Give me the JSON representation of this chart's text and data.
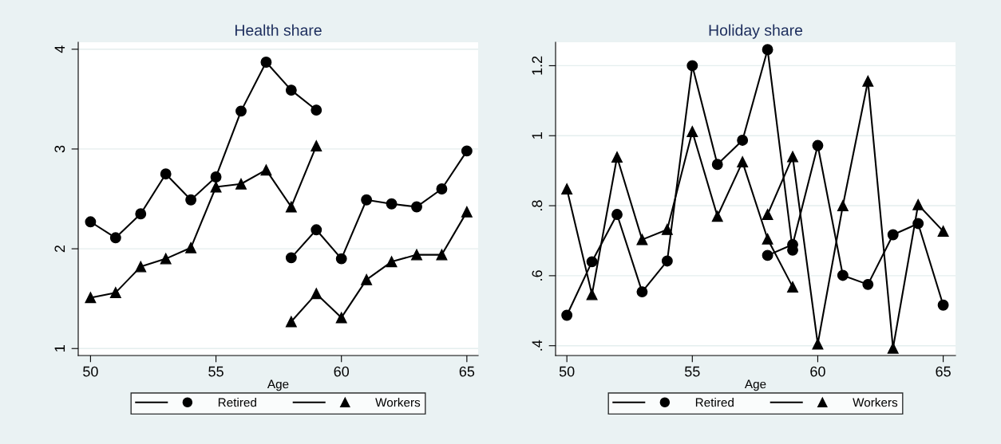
{
  "chart_data": [
    {
      "type": "line",
      "title": "Health share",
      "xlabel": "Age",
      "xlim": [
        49.51,
        65.45
      ],
      "xticks": [
        50,
        55,
        60,
        65
      ],
      "ylim": [
        0.93,
        4.07
      ],
      "yticks": [
        1,
        2,
        3,
        4
      ],
      "grid": "y",
      "legend": "bottom",
      "series": [
        {
          "name": "Retired",
          "color": "#000000",
          "marker": "circle",
          "x": [
            50,
            51,
            52,
            53,
            54,
            55,
            56,
            57,
            58,
            59
          ],
          "values": [
            2.27,
            2.11,
            2.35,
            2.75,
            2.49,
            2.72,
            3.38,
            3.87,
            3.59,
            3.39
          ]
        },
        {
          "name": "Workers",
          "color": "#000000",
          "marker": "triangle",
          "x": [
            50,
            51,
            52,
            53,
            54,
            55,
            56,
            57,
            58,
            59
          ],
          "values": [
            1.51,
            1.56,
            1.82,
            1.9,
            2.01,
            2.62,
            2.65,
            2.79,
            2.42,
            3.03
          ]
        },
        {
          "color": "#000000",
          "marker": "circle",
          "x": [
            58,
            59,
            60,
            61,
            62,
            63,
            64,
            65
          ],
          "values": [
            1.91,
            2.19,
            1.9,
            2.49,
            2.45,
            2.42,
            2.6,
            2.98
          ]
        },
        {
          "color": "#000000",
          "marker": "triangle",
          "x": [
            58,
            59,
            60,
            61,
            62,
            63,
            64,
            65
          ],
          "values": [
            1.27,
            1.55,
            1.31,
            1.69,
            1.87,
            1.94,
            1.94,
            2.37
          ]
        }
      ]
    },
    {
      "type": "line",
      "title": "Holiday share",
      "xlabel": "Age",
      "xlim": [
        49.55,
        65.49
      ],
      "xticks": [
        50,
        55,
        60,
        65
      ],
      "ylim": [
        0.372,
        1.267
      ],
      "yticks": [
        {
          "value": 0.4,
          "label": ".4"
        },
        {
          "value": 0.6,
          "label": ".6"
        },
        {
          "value": 0.8,
          "label": ".8"
        },
        1,
        1.2
      ],
      "grid": "y",
      "legend": "bottom",
      "series": [
        {
          "name": "Retired",
          "color": "#000000",
          "marker": "circle",
          "x": [
            50,
            51,
            52,
            53,
            54,
            55,
            56,
            57,
            58,
            59
          ],
          "values": [
            0.487,
            0.64,
            0.775,
            0.554,
            0.642,
            1.2,
            0.918,
            0.987,
            1.246,
            0.673
          ]
        },
        {
          "name": "Workers",
          "color": "#000000",
          "marker": "triangle",
          "x": [
            50,
            51,
            52,
            53,
            54,
            55,
            56,
            57,
            58,
            59
          ],
          "values": [
            0.848,
            0.546,
            0.939,
            0.703,
            0.732,
            1.012,
            0.77,
            0.925,
            0.705,
            0.568
          ]
        },
        {
          "color": "#000000",
          "marker": "circle",
          "x": [
            58,
            59,
            60,
            61,
            62,
            63,
            64,
            65
          ],
          "values": [
            0.658,
            0.689,
            0.972,
            0.601,
            0.575,
            0.717,
            0.749,
            0.516
          ]
        },
        {
          "color": "#000000",
          "marker": "triangle",
          "x": [
            58,
            59,
            60,
            61,
            62,
            63,
            64,
            65
          ],
          "values": [
            0.775,
            0.94,
            0.405,
            0.8,
            1.156,
            0.393,
            0.803,
            0.727
          ]
        }
      ]
    }
  ]
}
